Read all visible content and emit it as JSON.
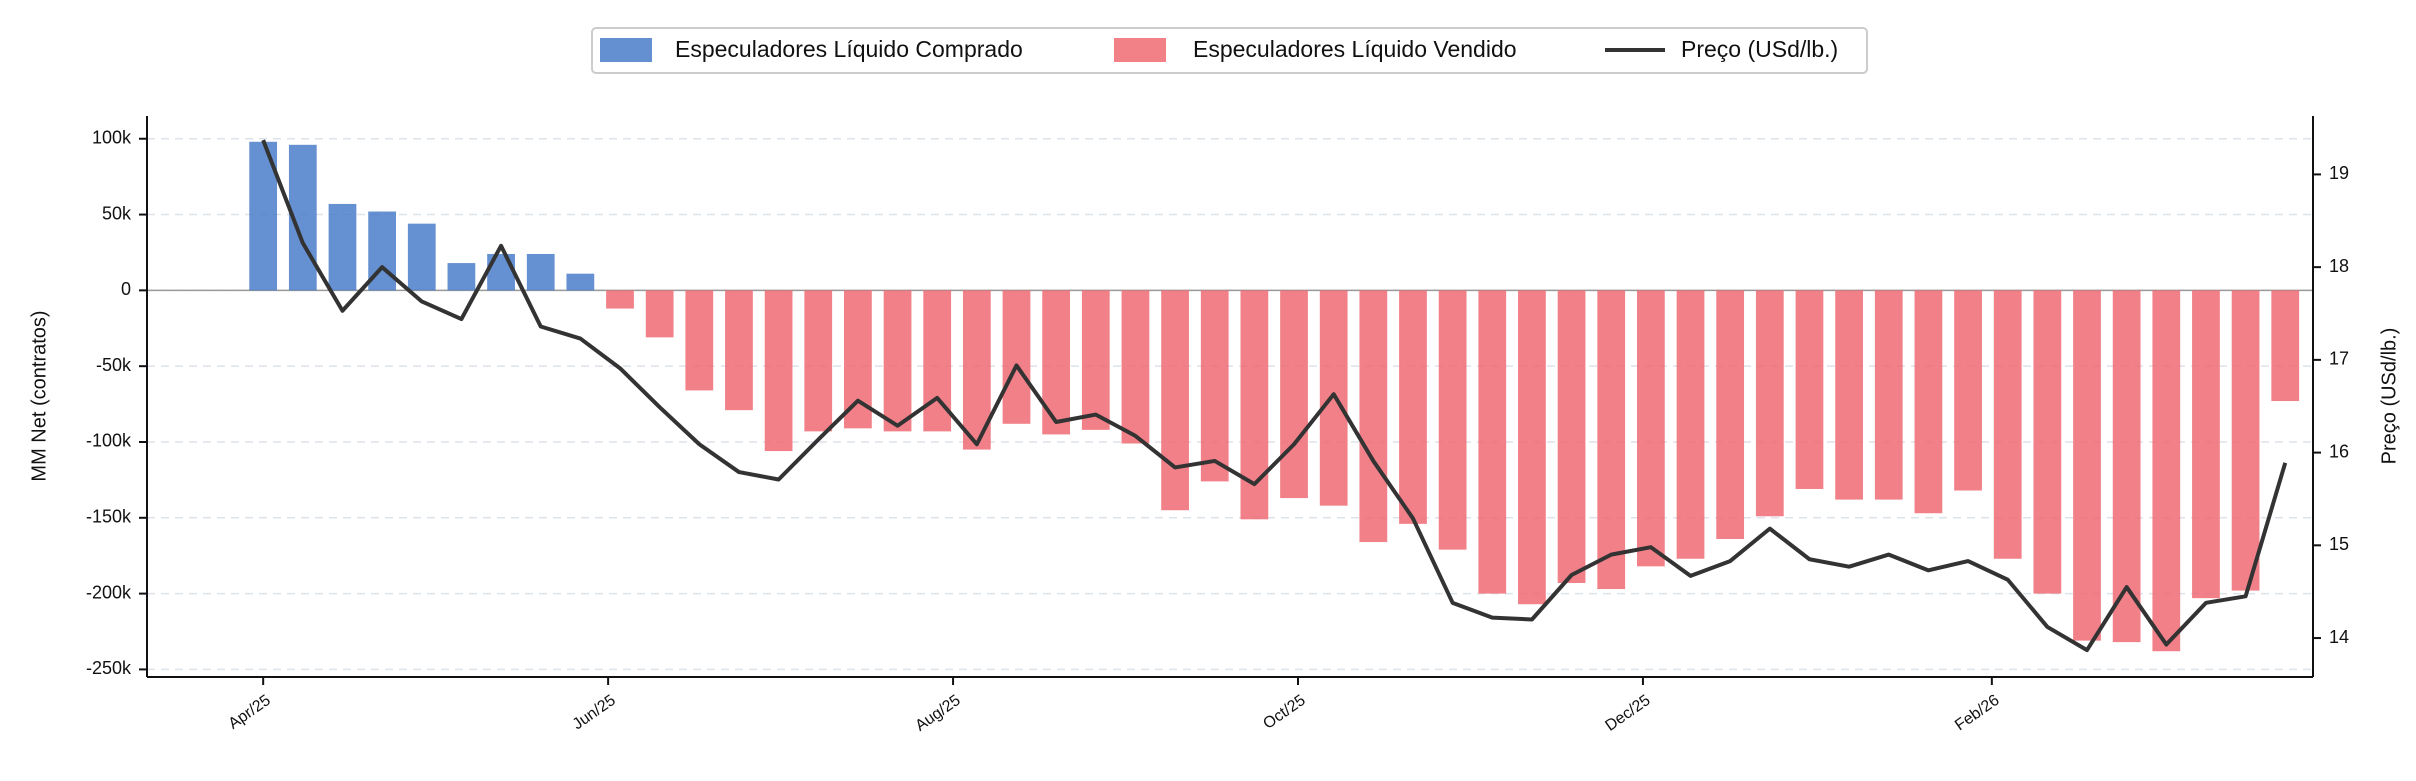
{
  "chart_data": {
    "type": "bar-line",
    "categories": [
      null,
      null,
      null,
      null,
      null,
      null,
      null,
      null,
      null,
      null,
      null,
      null,
      null,
      null,
      null,
      null,
      null,
      null,
      null,
      null,
      null,
      null,
      null,
      null,
      null,
      null,
      null,
      null,
      null,
      null,
      null,
      null,
      null,
      null,
      null,
      null,
      null,
      null,
      null,
      null,
      null,
      null,
      null,
      null,
      null,
      null,
      null,
      null,
      null,
      null,
      null,
      null
    ],
    "series": [
      {
        "name": "Especuladores Líquido Comprado",
        "color": "#4a7cc9",
        "values": [
          98000,
          96000,
          57000,
          52000,
          44000,
          18000,
          24000,
          24000,
          11000,
          null,
          null,
          null,
          null,
          null,
          null,
          null,
          null,
          null,
          null,
          null,
          null,
          null,
          null,
          null,
          null,
          null,
          null,
          null,
          null,
          null,
          null,
          null,
          null,
          null,
          null,
          null,
          null,
          null,
          null,
          null,
          null,
          null,
          null,
          null,
          null,
          null,
          null,
          null,
          null,
          null,
          null,
          null
        ]
      },
      {
        "name": "Especuladores Líquido Vendido",
        "color": "#ef6a73",
        "values": [
          null,
          null,
          null,
          null,
          null,
          null,
          null,
          null,
          null,
          -12000,
          -31000,
          -66000,
          -79000,
          -106000,
          -93000,
          -91000,
          -93000,
          -93000,
          -105000,
          -88000,
          -95000,
          -92000,
          -101000,
          -145000,
          -126000,
          -151000,
          -137000,
          -142000,
          -166000,
          -154000,
          -171000,
          -200000,
          -207000,
          -193000,
          -197000,
          -182000,
          -177000,
          -164000,
          -149000,
          -131000,
          -138000,
          -138000,
          -147000,
          -132000,
          -177000,
          -200000,
          -231000,
          -232000,
          -238000,
          -203000,
          -198000,
          -73000
        ]
      },
      {
        "name": "Preço (USd/lb.)",
        "color": "#333333",
        "axis": "y2",
        "values": [
          19.37,
          18.26,
          17.53,
          18.0,
          17.63,
          17.44,
          18.23,
          17.36,
          17.23,
          16.91,
          16.49,
          16.09,
          15.79,
          15.71,
          16.14,
          16.56,
          16.29,
          16.59,
          16.09,
          16.94,
          16.33,
          16.41,
          16.18,
          15.84,
          15.91,
          15.66,
          16.09,
          16.63,
          15.91,
          15.29,
          14.38,
          14.22,
          14.2,
          14.68,
          14.9,
          14.98,
          14.67,
          14.83,
          15.18,
          14.85,
          14.77,
          14.9,
          14.73,
          14.83,
          14.63,
          14.12,
          13.87,
          14.55,
          13.93,
          14.38,
          14.45,
          15.89
        ]
      }
    ],
    "ylabel": "MM Net (contratos)",
    "y2label": "Preço (USd/lb.)",
    "xlim": [
      -2.93,
      51.7
    ],
    "xticks": [
      {
        "value": 0,
        "label": "Apr/25"
      },
      {
        "value": 8.7,
        "label": "Jun/25"
      },
      {
        "value": 17.4,
        "label": "Aug/25"
      },
      {
        "value": 26.1,
        "label": "Oct/25"
      },
      {
        "value": 34.8,
        "label": "Dec/25"
      },
      {
        "value": 43.6,
        "label": "Feb/26"
      }
    ],
    "ylim": [
      -255000,
      115000
    ],
    "yticks": [
      {
        "value": -250000,
        "label": "-250k"
      },
      {
        "value": -200000,
        "label": "-200k"
      },
      {
        "value": -150000,
        "label": "-150k"
      },
      {
        "value": -100000,
        "label": "-100k"
      },
      {
        "value": -50000,
        "label": "-50k"
      },
      0,
      {
        "value": 50000,
        "label": "50k"
      },
      {
        "value": 100000,
        "label": "100k"
      }
    ],
    "y2lim": [
      13.58,
      19.63
    ],
    "y2ticks": [
      14,
      15,
      16,
      17,
      18,
      19
    ],
    "grid": true,
    "legend": "top"
  }
}
